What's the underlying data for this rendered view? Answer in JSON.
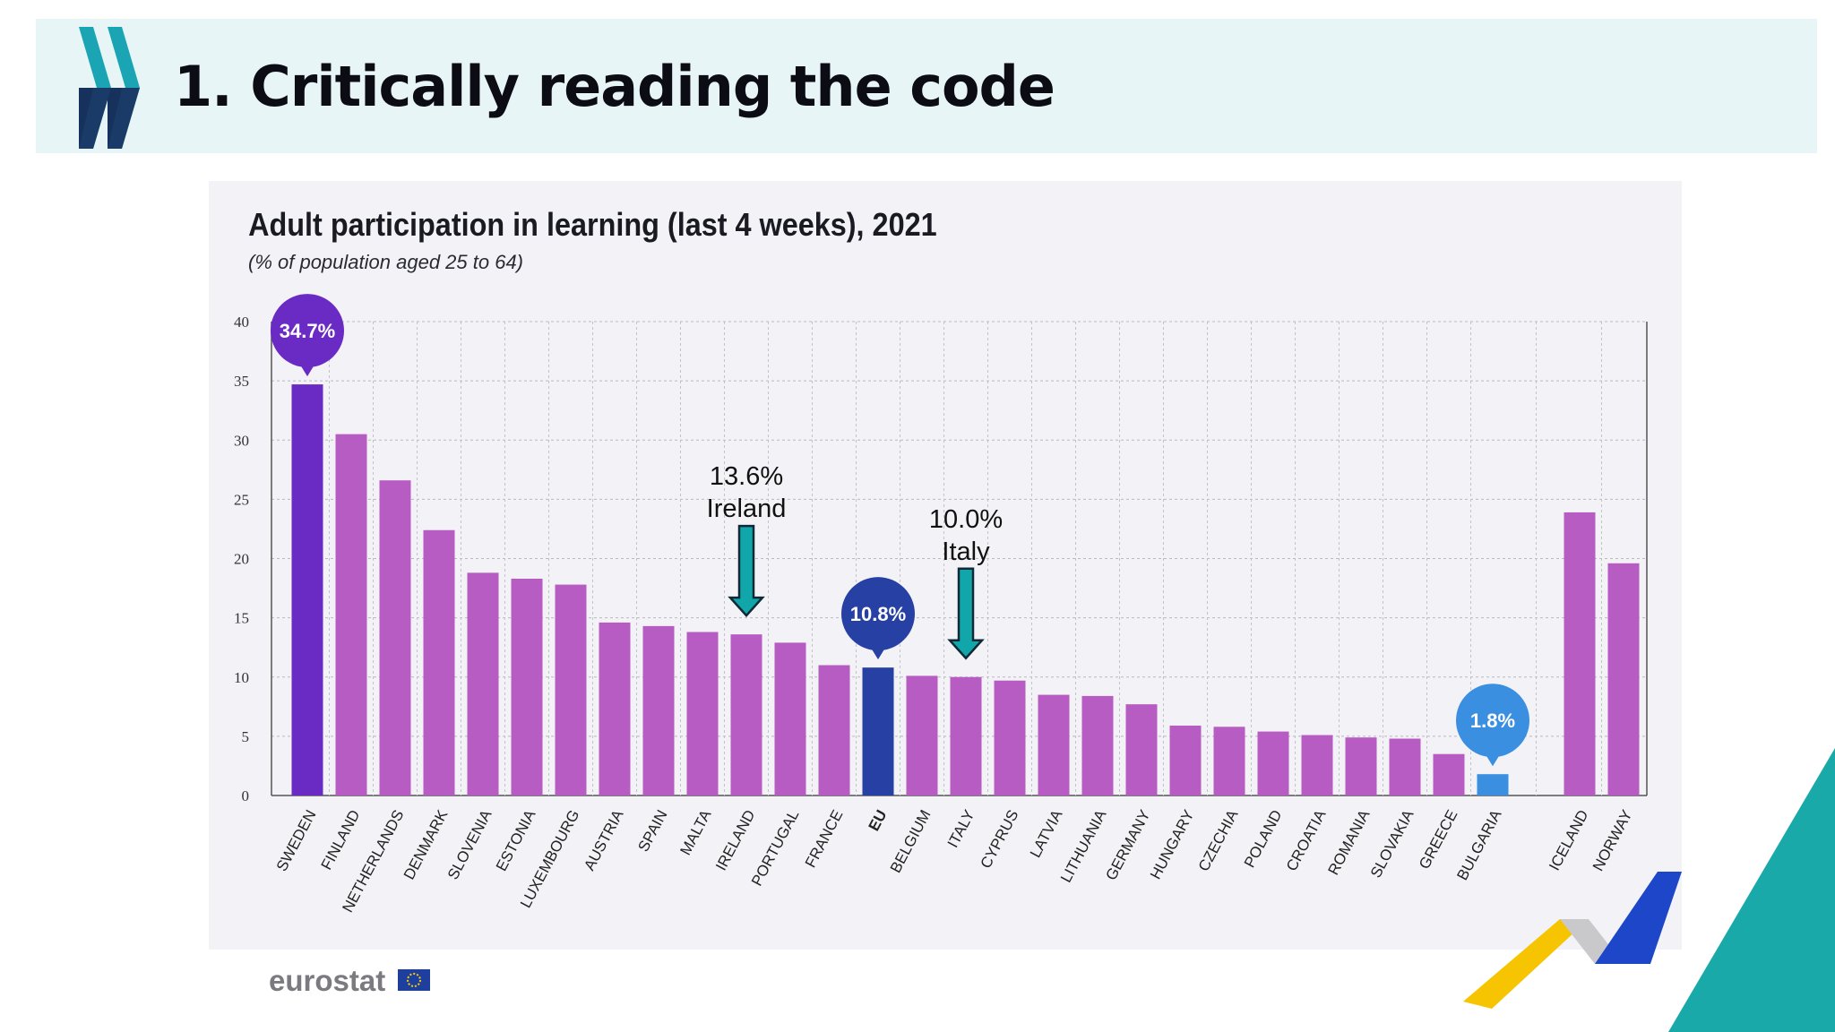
{
  "slide": {
    "title": "1. Critically reading the code"
  },
  "branding": {
    "logo_icon": "double-chevron-icon",
    "source_logo_text": "eurostat",
    "source_logo_flag": "eu-flag-icon"
  },
  "colors": {
    "highlight_top": "#6a2ac4",
    "bar_default": "#b75cc2",
    "bar_eu": "#2740a4",
    "bar_bottom": "#3a8fe0",
    "arrow": "#10a6aa",
    "accent_teal": "#1aa9a9"
  },
  "chart_data": {
    "type": "bar",
    "title": "Adult participation in learning (last 4 weeks), 2021",
    "subtitle": "(% of population aged 25 to 64)",
    "xlabel": "",
    "ylabel": "",
    "ylim": [
      0,
      40
    ],
    "yticks": [
      0,
      5,
      10,
      15,
      20,
      25,
      30,
      35,
      40
    ],
    "grid": true,
    "categories": [
      "SWEDEN",
      "FINLAND",
      "NETHERLANDS",
      "DENMARK",
      "SLOVENIA",
      "ESTONIA",
      "LUXEMBOURG",
      "AUSTRIA",
      "SPAIN",
      "MALTA",
      "IRELAND",
      "PORTUGAL",
      "FRANCE",
      "EU",
      "BELGIUM",
      "ITALY",
      "CYPRUS",
      "LATVIA",
      "LITHUANIA",
      "GERMANY",
      "HUNGARY",
      "CZECHIA",
      "POLAND",
      "CROATIA",
      "ROMANIA",
      "SLOVAKIA",
      "GREECE",
      "BULGARIA",
      "ICELAND",
      "NORWAY"
    ],
    "values": [
      34.7,
      30.5,
      26.6,
      22.4,
      18.8,
      18.3,
      17.8,
      14.6,
      14.3,
      13.8,
      13.6,
      12.9,
      11.0,
      10.8,
      10.1,
      10.0,
      9.7,
      8.5,
      8.4,
      7.7,
      5.9,
      5.8,
      5.4,
      5.1,
      4.9,
      4.8,
      3.5,
      1.8,
      23.9,
      19.6
    ],
    "bubbles": [
      {
        "category": "SWEDEN",
        "label": "34.7%"
      },
      {
        "category": "EU",
        "label": "10.8%"
      },
      {
        "category": "BULGARIA",
        "label": "1.8%"
      }
    ],
    "annotations": [
      {
        "category": "IRELAND",
        "value_text": "13.6%",
        "name_text": "Ireland"
      },
      {
        "category": "ITALY",
        "value_text": "10.0%",
        "name_text": "Italy"
      }
    ]
  }
}
